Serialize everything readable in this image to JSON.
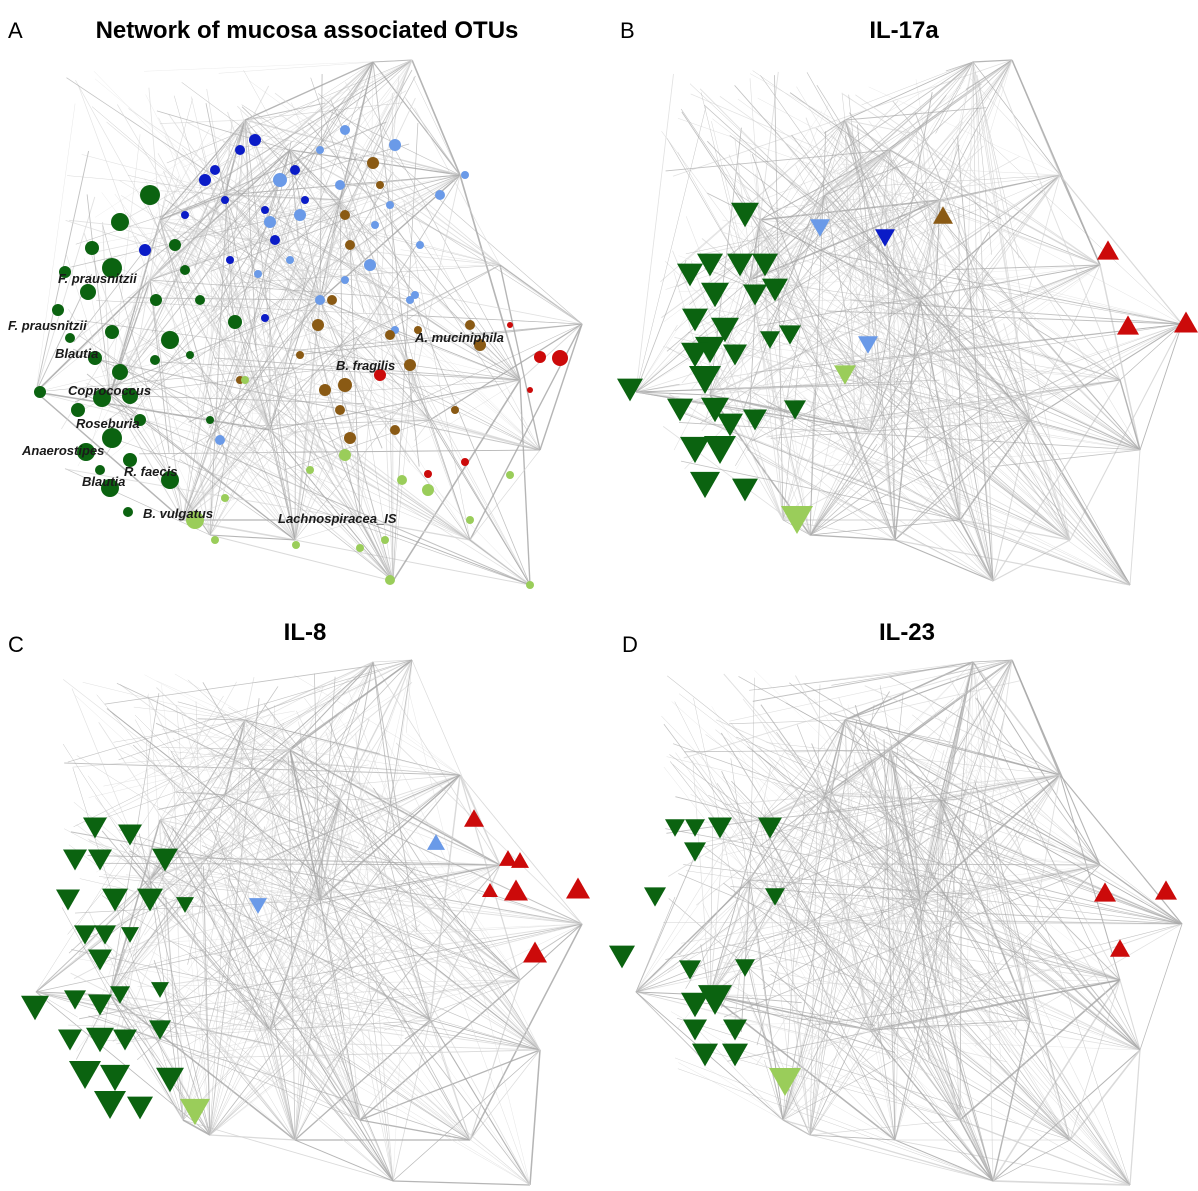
{
  "colors": {
    "edge": "#a8a8a8",
    "edge_light": "#d4d4d4",
    "dark_green": "#0b6310",
    "light_green": "#9acd5a",
    "dark_blue": "#0a1bc7",
    "light_blue": "#6a9ae8",
    "brown": "#8a5a14",
    "red": "#cc0a0a"
  },
  "panels": [
    {
      "letter": "A",
      "title": "Network of mucosa associated OTUs",
      "taxa": [
        "F. prausnitzii",
        "F. prausnitzii",
        "Blautia",
        "Coprococcus",
        "Roseburia",
        "Anaerostipes",
        "R. faecis",
        "Blautia",
        "B. vulgatus",
        "Lachnospiracea_IS",
        "B. fragilis",
        "A. muciniphila"
      ]
    },
    {
      "letter": "B",
      "title": "IL-17a"
    },
    {
      "letter": "C",
      "title": "IL-8"
    },
    {
      "letter": "D",
      "title": "IL-23"
    }
  ]
}
